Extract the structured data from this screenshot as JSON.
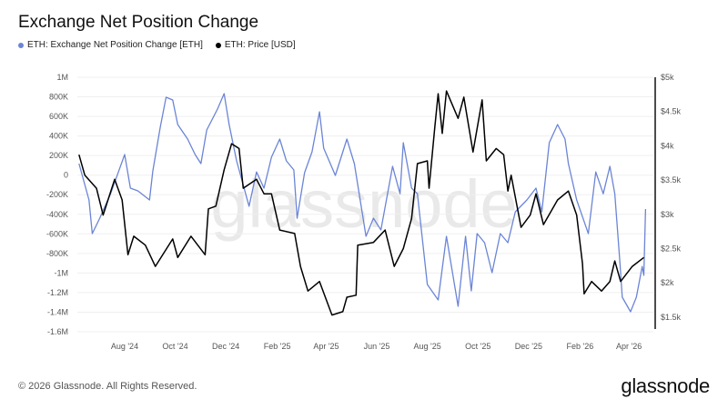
{
  "chart_data": {
    "type": "line",
    "title": "Exchange Net Position Change",
    "watermark": "glassnode",
    "x_range": [
      "2024-06-05",
      "2026-04-25"
    ],
    "x_ticks": [
      "Aug '24",
      "Oct '24",
      "Dec '24",
      "Feb '25",
      "Apr '25",
      "Jun '25",
      "Aug '25",
      "Oct '25",
      "Dec '25",
      "Feb '26",
      "Apr '26"
    ],
    "x_tick_dates": [
      "2024-08-01",
      "2024-10-01",
      "2024-12-01",
      "2025-02-01",
      "2025-04-01",
      "2025-06-01",
      "2025-08-01",
      "2025-10-01",
      "2025-12-01",
      "2026-02-01",
      "2026-04-01"
    ],
    "y_left": {
      "range": [
        -1600000,
        1000000
      ],
      "ticks": [
        1000000,
        800000,
        600000,
        400000,
        200000,
        0,
        -200000,
        -400000,
        -600000,
        -800000,
        -1000000,
        -1200000,
        -1400000,
        -1600000
      ],
      "tick_labels": [
        "1M",
        "800K",
        "600K",
        "400K",
        "200K",
        "0",
        "-200K",
        "-400K",
        "-600K",
        "-800K",
        "-1M",
        "-1.2M",
        "-1.4M",
        "-1.6M"
      ]
    },
    "y_right": {
      "range": [
        1350,
        5000
      ],
      "ticks": [
        5000,
        4500,
        4000,
        3500,
        3000,
        2500,
        2000,
        1500
      ],
      "tick_labels": [
        "$5k",
        "$4.5k",
        "$4k",
        "$3.5k",
        "$3k",
        "$2.5k",
        "$2k",
        "$1.5k"
      ]
    },
    "grid": true,
    "legend_position": "top-left",
    "series": [
      {
        "name": "ETH: Exchange Net Position Change [ETH]",
        "axis": "left",
        "color": "#6b85d6",
        "points": [
          [
            "2024-06-07",
            118000
          ],
          [
            "2024-06-19",
            -254000
          ],
          [
            "2024-06-23",
            -597000
          ],
          [
            "2024-07-02",
            -440000
          ],
          [
            "2024-07-15",
            -190000
          ],
          [
            "2024-08-01",
            211000
          ],
          [
            "2024-08-08",
            -133000
          ],
          [
            "2024-08-17",
            -161000
          ],
          [
            "2024-08-31",
            -254000
          ],
          [
            "2024-09-04",
            40000
          ],
          [
            "2024-09-13",
            489000
          ],
          [
            "2024-09-20",
            796000
          ],
          [
            "2024-09-28",
            768000
          ],
          [
            "2024-10-04",
            517000
          ],
          [
            "2024-10-16",
            369000
          ],
          [
            "2024-10-25",
            211000
          ],
          [
            "2024-11-01",
            118000
          ],
          [
            "2024-11-08",
            461000
          ],
          [
            "2024-11-21",
            675000
          ],
          [
            "2024-11-29",
            833000
          ],
          [
            "2024-12-05",
            517000
          ],
          [
            "2024-12-14",
            146000
          ],
          [
            "2024-12-29",
            -318000
          ],
          [
            "2025-01-07",
            32000
          ],
          [
            "2025-01-16",
            -133000
          ],
          [
            "2025-01-25",
            183000
          ],
          [
            "2025-02-04",
            369000
          ],
          [
            "2025-02-12",
            146000
          ],
          [
            "2025-02-21",
            53000
          ],
          [
            "2025-02-25",
            -440000
          ],
          [
            "2025-03-06",
            25000
          ],
          [
            "2025-03-15",
            239000
          ],
          [
            "2025-03-24",
            647000
          ],
          [
            "2025-03-29",
            276000
          ],
          [
            "2025-04-12",
            -3000
          ],
          [
            "2025-04-26",
            369000
          ],
          [
            "2025-05-05",
            118000
          ],
          [
            "2025-05-19",
            -625000
          ],
          [
            "2025-05-28",
            -440000
          ],
          [
            "2025-06-06",
            -560000
          ],
          [
            "2025-06-20",
            90000
          ],
          [
            "2025-06-29",
            -190000
          ],
          [
            "2025-07-03",
            331000
          ],
          [
            "2025-07-13",
            -133000
          ],
          [
            "2025-07-20",
            -190000
          ],
          [
            "2025-08-01",
            -1117000
          ],
          [
            "2025-08-14",
            -1275000
          ],
          [
            "2025-08-24",
            -625000
          ],
          [
            "2025-09-07",
            -1340000
          ],
          [
            "2025-09-16",
            -625000
          ],
          [
            "2025-09-23",
            -1182000
          ],
          [
            "2025-09-30",
            -597000
          ],
          [
            "2025-10-09",
            -690000
          ],
          [
            "2025-10-18",
            -996000
          ],
          [
            "2025-10-28",
            -597000
          ],
          [
            "2025-11-06",
            -690000
          ],
          [
            "2025-11-15",
            -374000
          ],
          [
            "2025-11-29",
            -254000
          ],
          [
            "2025-12-10",
            -133000
          ],
          [
            "2025-12-17",
            -374000
          ],
          [
            "2025-12-26",
            331000
          ],
          [
            "2026-01-05",
            517000
          ],
          [
            "2026-01-14",
            369000
          ],
          [
            "2026-01-18",
            118000
          ],
          [
            "2026-01-28",
            -254000
          ],
          [
            "2026-02-11",
            -597000
          ],
          [
            "2026-02-20",
            32000
          ],
          [
            "2026-03-01",
            -190000
          ],
          [
            "2026-03-09",
            90000
          ],
          [
            "2026-03-15",
            -190000
          ],
          [
            "2026-03-21",
            -876000
          ],
          [
            "2026-03-24",
            -1247000
          ],
          [
            "2026-04-03",
            -1396000
          ],
          [
            "2026-04-10",
            -1247000
          ],
          [
            "2026-04-17",
            -932000
          ],
          [
            "2026-04-19",
            -1024000
          ],
          [
            "2026-04-21",
            -346000
          ]
        ]
      },
      {
        "name": "ETH: Price [USD]",
        "axis": "right",
        "color": "#000000",
        "points": [
          [
            "2024-06-07",
            3870
          ],
          [
            "2024-06-14",
            3570
          ],
          [
            "2024-06-28",
            3380
          ],
          [
            "2024-07-06",
            2990
          ],
          [
            "2024-07-20",
            3510
          ],
          [
            "2024-07-29",
            3210
          ],
          [
            "2024-08-05",
            2410
          ],
          [
            "2024-08-12",
            2680
          ],
          [
            "2024-08-26",
            2550
          ],
          [
            "2024-09-07",
            2240
          ],
          [
            "2024-09-28",
            2640
          ],
          [
            "2024-10-04",
            2370
          ],
          [
            "2024-10-20",
            2680
          ],
          [
            "2024-11-06",
            2410
          ],
          [
            "2024-11-10",
            3080
          ],
          [
            "2024-11-19",
            3120
          ],
          [
            "2024-11-29",
            3650
          ],
          [
            "2024-12-08",
            4030
          ],
          [
            "2024-12-17",
            3960
          ],
          [
            "2024-12-22",
            3380
          ],
          [
            "2025-01-07",
            3510
          ],
          [
            "2025-01-16",
            3300
          ],
          [
            "2025-01-25",
            3300
          ],
          [
            "2025-02-04",
            2770
          ],
          [
            "2025-02-22",
            2720
          ],
          [
            "2025-03-01",
            2240
          ],
          [
            "2025-03-10",
            1880
          ],
          [
            "2025-03-24",
            2020
          ],
          [
            "2025-04-08",
            1530
          ],
          [
            "2025-04-21",
            1580
          ],
          [
            "2025-04-26",
            1790
          ],
          [
            "2025-05-07",
            1820
          ],
          [
            "2025-05-09",
            2550
          ],
          [
            "2025-05-28",
            2590
          ],
          [
            "2025-06-11",
            2770
          ],
          [
            "2025-06-22",
            2240
          ],
          [
            "2025-07-03",
            2500
          ],
          [
            "2025-07-13",
            2940
          ],
          [
            "2025-07-20",
            3740
          ],
          [
            "2025-08-01",
            3780
          ],
          [
            "2025-08-03",
            3380
          ],
          [
            "2025-08-10",
            4270
          ],
          [
            "2025-08-14",
            4760
          ],
          [
            "2025-08-19",
            4180
          ],
          [
            "2025-08-24",
            4800
          ],
          [
            "2025-09-07",
            4400
          ],
          [
            "2025-09-14",
            4710
          ],
          [
            "2025-09-25",
            3910
          ],
          [
            "2025-10-06",
            4670
          ],
          [
            "2025-10-11",
            3780
          ],
          [
            "2025-10-23",
            3960
          ],
          [
            "2025-11-01",
            3870
          ],
          [
            "2025-11-06",
            3340
          ],
          [
            "2025-11-10",
            3570
          ],
          [
            "2025-11-22",
            2810
          ],
          [
            "2025-12-03",
            2990
          ],
          [
            "2025-12-10",
            3300
          ],
          [
            "2025-12-19",
            2850
          ],
          [
            "2026-01-05",
            3210
          ],
          [
            "2026-01-18",
            3340
          ],
          [
            "2026-01-28",
            2990
          ],
          [
            "2026-02-04",
            2280
          ],
          [
            "2026-02-06",
            1840
          ],
          [
            "2026-02-15",
            2020
          ],
          [
            "2026-02-27",
            1880
          ],
          [
            "2026-03-09",
            2020
          ],
          [
            "2026-03-15",
            2320
          ],
          [
            "2026-03-22",
            2020
          ],
          [
            "2026-04-05",
            2240
          ],
          [
            "2026-04-19",
            2370
          ]
        ]
      }
    ]
  },
  "footer": {
    "copyright": "© 2026 Glassnode. All Rights Reserved.",
    "logo": "glassnode"
  }
}
